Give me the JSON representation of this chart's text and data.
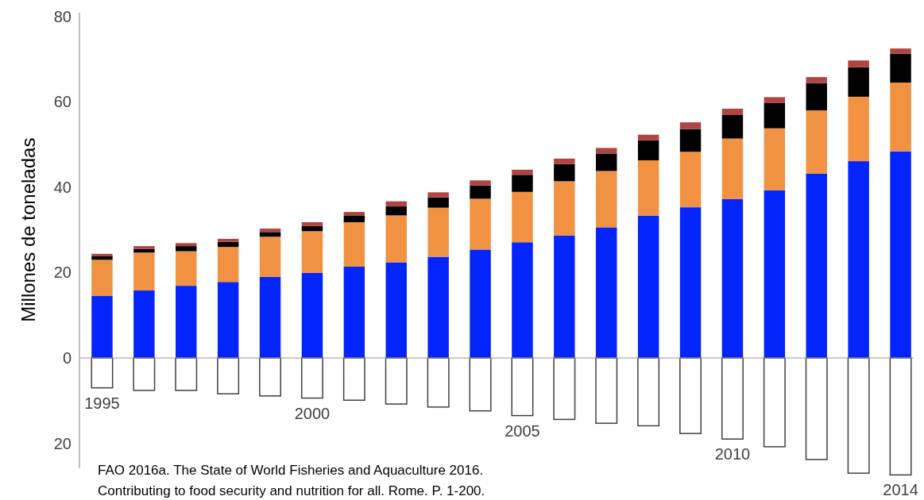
{
  "chart_data": {
    "type": "bar",
    "stacked": true,
    "ylabel": "Millones de toneladas",
    "categories": [
      "1995",
      null,
      null,
      null,
      null,
      "2000",
      null,
      null,
      null,
      null,
      "2005",
      null,
      null,
      null,
      null,
      "2010",
      null,
      null,
      null,
      "2014"
    ],
    "series": [
      {
        "color": "#0324fb",
        "values": [
          14.5,
          15.8,
          16.9,
          17.8,
          19.0,
          19.9,
          21.4,
          22.4,
          23.7,
          25.4,
          27.1,
          28.7,
          30.6,
          33.3,
          35.3,
          37.2,
          39.3,
          43.2,
          46.1,
          48.4
        ]
      },
      {
        "color": "#f09241",
        "values": [
          8.5,
          8.9,
          8.1,
          8.2,
          9.4,
          9.8,
          10.4,
          11.0,
          11.5,
          11.9,
          11.8,
          12.7,
          13.2,
          13.0,
          13.0,
          14.2,
          14.5,
          14.8,
          15.1,
          16.1
        ]
      },
      {
        "color": "#000000",
        "values": [
          0.8,
          0.8,
          1.2,
          1.2,
          1.1,
          1.2,
          1.6,
          2.1,
          2.4,
          3.1,
          4.0,
          4.0,
          4.1,
          4.7,
          5.3,
          5.5,
          5.9,
          6.4,
          6.9,
          6.8
        ]
      },
      {
        "color": "#b04442",
        "values": [
          0.6,
          0.7,
          0.7,
          0.7,
          0.8,
          0.9,
          0.8,
          1.2,
          1.2,
          1.2,
          1.2,
          1.3,
          1.3,
          1.3,
          1.6,
          1.5,
          1.4,
          1.4,
          1.6,
          1.2
        ]
      },
      {
        "color": "#ffffff",
        "values": [
          -7.0,
          -7.6,
          -7.6,
          -8.4,
          -8.9,
          -9.4,
          -9.9,
          -10.8,
          -11.5,
          -12.4,
          -13.5,
          -14.4,
          -15.3,
          -15.9,
          -17.7,
          -19.0,
          -20.8,
          -23.8,
          -27.0,
          -27.4
        ]
      }
    ],
    "ylim": [
      -28,
      82
    ],
    "yticks": [
      80,
      60,
      40,
      20,
      0,
      {
        "value": -20,
        "label": "20"
      }
    ],
    "annotations": [
      "FAO 2016a. The State of World Fisheries and Aquaculture 2016.",
      "Contributing to food security and nutrition for all. Rome. P. 1-200."
    ]
  }
}
